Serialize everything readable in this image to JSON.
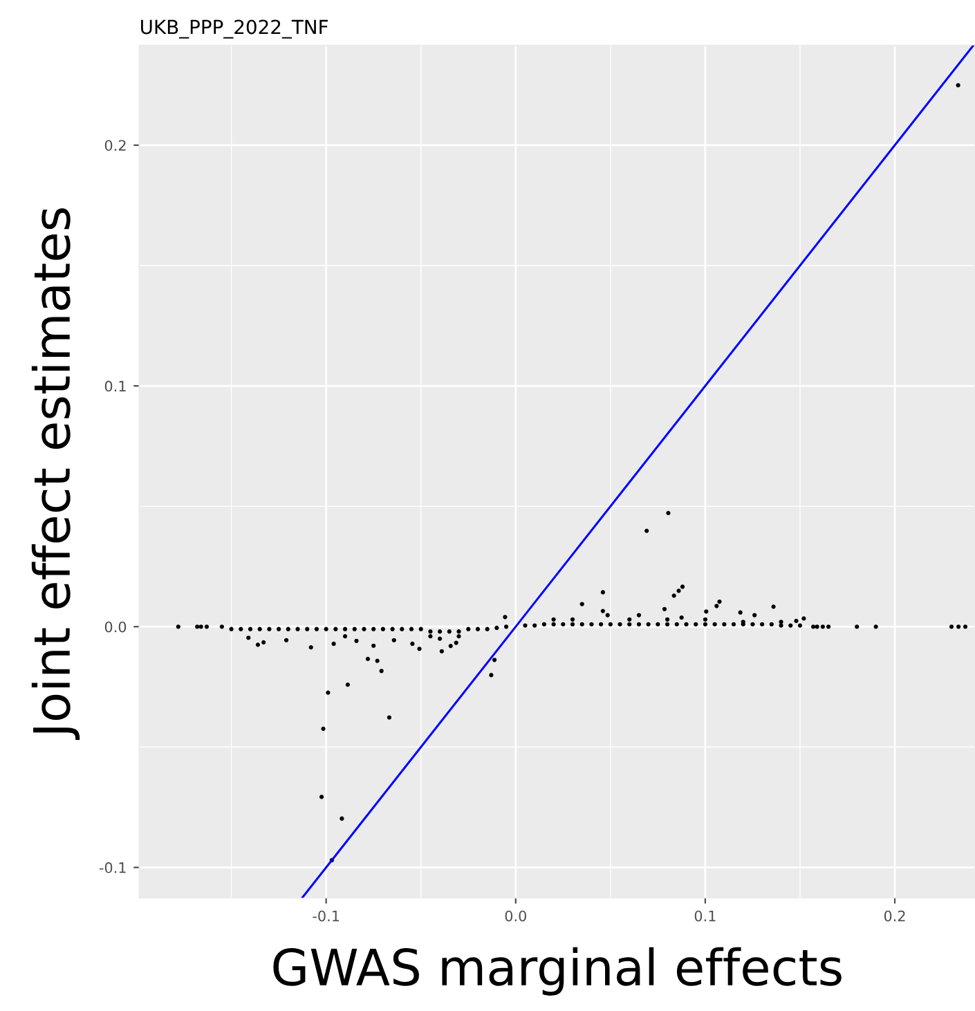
{
  "chart_data": {
    "type": "scatter",
    "title": "UKB_PPP_2022_TNF",
    "xlabel": "GWAS marginal effects",
    "ylabel": "Joint effect estimates",
    "xlim": [
      -0.1985,
      0.2423
    ],
    "ylim": [
      -0.1126,
      0.2414
    ],
    "xticks": [
      -0.1,
      {
        "value": 0,
        "label": "0.0"
      },
      0.1,
      0.2
    ],
    "yticks": [
      -0.1,
      {
        "value": 0,
        "label": "0.0"
      },
      0.1,
      0.2
    ],
    "grid": true,
    "marker": "circle",
    "series": [
      {
        "color": "#000000",
        "x": [
          -0.178,
          -0.168,
          -0.166,
          -0.163,
          -0.155,
          -0.15,
          -0.145,
          -0.14,
          -0.135,
          -0.13,
          -0.125,
          -0.12,
          -0.115,
          -0.11,
          -0.105,
          -0.1,
          -0.095,
          -0.09,
          -0.085,
          -0.08,
          -0.075,
          -0.07,
          -0.065,
          -0.06,
          -0.055,
          -0.05,
          -0.045,
          -0.04,
          -0.035,
          -0.03,
          -0.025,
          -0.02,
          -0.015,
          -0.01,
          -0.005,
          0.005,
          0.01,
          0.015,
          0.02,
          0.025,
          0.03,
          0.035,
          0.04,
          0.045,
          0.05,
          0.055,
          0.06,
          0.065,
          0.07,
          0.075,
          0.08,
          0.085,
          0.09,
          0.095,
          0.1,
          0.105,
          0.11,
          0.115,
          0.12,
          0.125,
          0.13,
          0.135,
          0.14,
          0.145,
          0.15,
          -0.141,
          -0.136,
          -0.133,
          -0.121,
          -0.108,
          -0.099,
          -0.1015,
          -0.1024,
          -0.0917,
          -0.097,
          -0.0886,
          -0.096,
          -0.078,
          -0.073,
          -0.0708,
          -0.0667,
          -0.075,
          -0.084,
          -0.0545,
          -0.0508,
          -0.039,
          -0.0343,
          -0.0314,
          -0.0129,
          -0.0112,
          -0.0056,
          -0.0642,
          -0.09,
          -0.045,
          -0.04,
          -0.03,
          0.0691,
          0.0805,
          0.046,
          0.035,
          0.046,
          0.0485,
          0.0835,
          0.086,
          0.088,
          0.0785,
          0.065,
          0.0875,
          0.1005,
          0.106,
          0.1075,
          0.1185,
          0.126,
          0.136,
          0.152,
          0.148,
          0.157,
          0.159,
          0.162,
          0.165,
          0.18,
          0.19,
          0.2299,
          0.2336,
          0.2372,
          0.2334,
          0.02,
          0.03,
          0.06,
          0.08,
          0.1,
          0.12,
          0.14
        ],
        "values": [
          0,
          0,
          0,
          0,
          0,
          -0.001,
          -0.001,
          -0.001,
          -0.001,
          -0.001,
          -0.001,
          -0.001,
          -0.001,
          -0.001,
          -0.001,
          -0.001,
          -0.001,
          -0.001,
          -0.001,
          -0.001,
          -0.001,
          -0.001,
          -0.001,
          -0.001,
          -0.001,
          -0.001,
          -0.002,
          -0.002,
          -0.002,
          -0.002,
          -0.001,
          -0.001,
          -0.001,
          -0.0005,
          0,
          0.0005,
          0.0005,
          0.001,
          0.001,
          0.001,
          0.001,
          0.001,
          0.001,
          0.001,
          0.001,
          0.001,
          0.001,
          0.001,
          0.001,
          0.001,
          0.001,
          0.001,
          0.001,
          0.001,
          0.001,
          0.001,
          0.001,
          0.001,
          0.001,
          0.001,
          0.001,
          0.001,
          0.0005,
          0.0005,
          0.0005,
          -0.0046,
          -0.0075,
          -0.0065,
          -0.0056,
          -0.0086,
          -0.0274,
          -0.0424,
          -0.0707,
          -0.0797,
          -0.097,
          -0.0241,
          -0.0071,
          -0.0134,
          -0.0142,
          -0.0184,
          -0.0377,
          -0.0079,
          -0.0059,
          -0.0071,
          -0.0092,
          -0.0102,
          -0.008,
          -0.0067,
          -0.0201,
          -0.0138,
          0.004,
          -0.0056,
          -0.004,
          -0.004,
          -0.005,
          -0.004,
          0.0398,
          0.0472,
          0.0143,
          0.0094,
          0.0065,
          0.0048,
          0.0129,
          0.0149,
          0.0166,
          0.0073,
          0.0048,
          0.0038,
          0.0063,
          0.0086,
          0.0104,
          0.0059,
          0.0048,
          0.0083,
          0.0034,
          0.0024,
          0,
          0,
          0,
          0,
          0,
          0,
          0,
          0,
          0,
          0.2249,
          0.003,
          0.003,
          0.003,
          0.003,
          0.003,
          0.002,
          0.002
        ]
      },
      {
        "type": "line",
        "color": "#0000ff",
        "line_style": "solid",
        "marker": "none",
        "x": [
          -0.1126,
          0.2414
        ],
        "values": [
          -0.1126,
          0.2414
        ]
      }
    ]
  }
}
